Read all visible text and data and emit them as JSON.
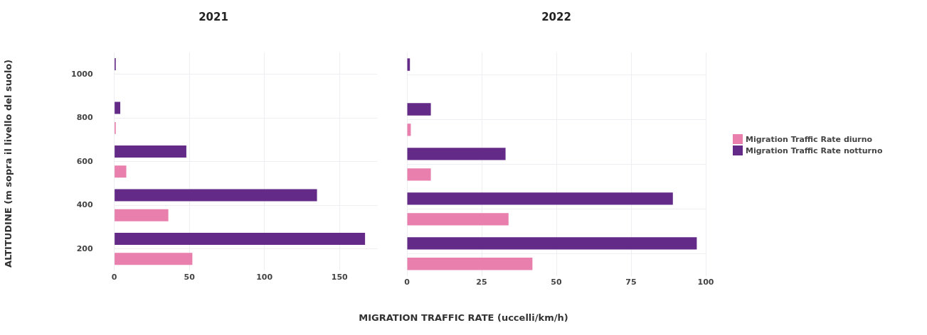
{
  "chart_data": [
    {
      "type": "bar",
      "orientation": "horizontal",
      "title": "2021",
      "ylabel": "ALTITUDINE (m sopra il livello del suolo)",
      "xlabel": "MIGRATION TRAFFIC RATE (uccelli/km/h)",
      "categories": [
        "1000",
        "800",
        "600",
        "400",
        "200"
      ],
      "series": [
        {
          "color": "#e87fac",
          "values": [
            null,
            1,
            8,
            36,
            52
          ]
        },
        {
          "color": "#632a87",
          "values": [
            1,
            4,
            48,
            135,
            167
          ]
        }
      ],
      "xlim": [
        0,
        175
      ],
      "xticks": [
        0,
        50,
        100,
        150
      ],
      "grid": true,
      "legend": false
    },
    {
      "type": "bar",
      "orientation": "horizontal",
      "title": "2022",
      "categories": [
        "1000",
        "800",
        "600",
        "400",
        "200"
      ],
      "series": [
        {
          "name": "Migration Traffic Rate diurno",
          "color": "#e87fac",
          "values": [
            null,
            1.3,
            8,
            34,
            42
          ]
        },
        {
          "name": "Migration Traffic Rate notturno",
          "color": "#632a87",
          "values": [
            1,
            8,
            33,
            89,
            97
          ]
        }
      ],
      "xlim": [
        0,
        100
      ],
      "xticks": [
        0,
        25,
        50,
        75,
        100
      ],
      "grid": true,
      "legend": "right",
      "tick_labels": "x"
    }
  ]
}
